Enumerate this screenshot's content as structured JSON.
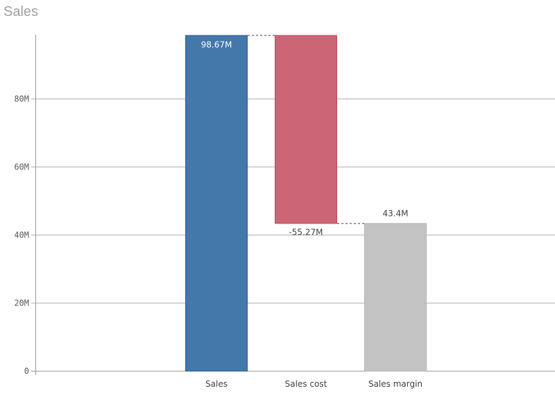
{
  "chart_data": {
    "type": "waterfall",
    "title": "Sales",
    "categories": [
      "Sales",
      "Sales cost",
      "Sales margin"
    ],
    "values": [
      98.67,
      -55.27,
      43.4
    ],
    "data_labels": [
      "98.67M",
      "-55.27M",
      "43.4M"
    ],
    "unit": "M",
    "ylim": [
      0,
      98.67
    ],
    "yticks": [
      0,
      20,
      40,
      60,
      80
    ],
    "ytick_labels": [
      "0",
      "20M",
      "40M",
      "60M",
      "80M"
    ],
    "grid": true,
    "colors": {
      "positive": "#4477aa",
      "negative": "#cc6677",
      "total": "#c3c3c3"
    },
    "bar_roles": [
      "positive",
      "negative",
      "total"
    ]
  }
}
